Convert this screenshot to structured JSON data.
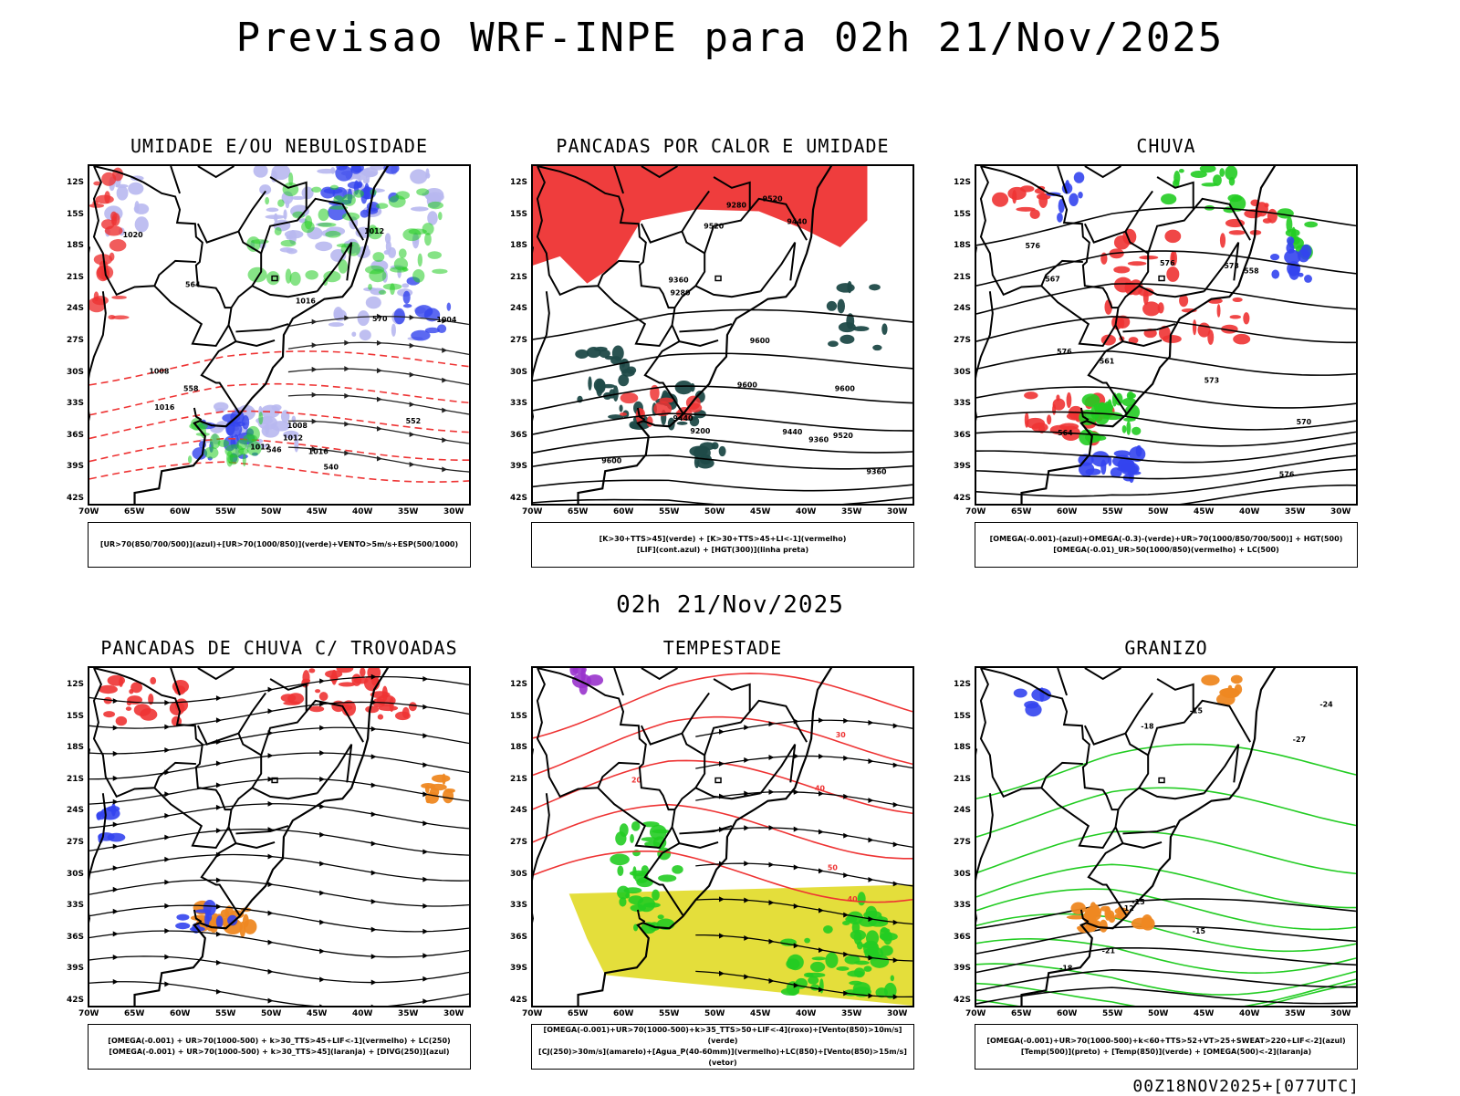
{
  "title": "Previsao WRF-INPE  para 02h 21/Nov/2025",
  "subtitle": "02h 21/Nov/2025",
  "footer": "00Z18NOV2025+[077UTC]",
  "colors": {
    "green": "#22cc22",
    "red": "#ee3333",
    "blue": "#3344ee",
    "lavender": "#b8b8f0",
    "yellow": "#e3dc30",
    "dark_teal": "#1f4a48",
    "orange": "#ee8822",
    "purple": "#9933cc"
  },
  "axes": {
    "y_ticks": [
      "12S",
      "15S",
      "18S",
      "21S",
      "24S",
      "27S",
      "30S",
      "33S",
      "36S",
      "39S",
      "42S"
    ],
    "x_ticks": [
      "70W",
      "65W",
      "60W",
      "55W",
      "50W",
      "45W",
      "40W",
      "35W",
      "30W"
    ]
  },
  "panels": [
    {
      "id": "umidade",
      "title": "UMIDADE E/OU NEBULOSIDADE",
      "legend": [
        "[UR>70(850/700/500)](azul)+[UR>70(1000/850)](verde)+VENTO>5m/s+ESP(500/1000)"
      ],
      "contour_labels": [
        "1012",
        "1008",
        "1016",
        "1020",
        "1004",
        "1016",
        "1012",
        "1008",
        "570",
        "564",
        "558",
        "552",
        "546",
        "540",
        "1012",
        "1016"
      ]
    },
    {
      "id": "pancadas-calor",
      "title": "PANCADAS POR CALOR E UMIDADE",
      "legend": [
        "[K>30+TTS>45](verde) + [K>30+TTS>45+LI<-1](vermelho)",
        "[LIF](cont.azul) + [HGT(300)](linha preta)"
      ],
      "contour_labels": [
        "9600",
        "9600",
        "9600",
        "9600",
        "9520",
        "9520",
        "9520",
        "9440",
        "9360",
        "9440",
        "9360",
        "9280",
        "9200",
        "9280",
        "9440",
        "9360"
      ]
    },
    {
      "id": "chuva",
      "title": "CHUVA",
      "legend": [
        "[OMEGA(-0.001)-(azul)+OMEGA(-0.3)-(verde)+UR>70(1000/850/700/500)] + HGT(500)",
        "[OMEGA(-0.01)_UR>50(1000/850)(vermelho) + LC(500)"
      ],
      "contour_labels": [
        "576",
        "576",
        "573",
        "576",
        "570",
        "567",
        "564",
        "561",
        "558",
        "576",
        "573"
      ]
    },
    {
      "id": "trovoadas",
      "title": "PANCADAS DE CHUVA C/ TROVOADAS",
      "legend": [
        "[OMEGA(-0.001) + UR>70(1000-500) + k>30_TTS>45+LIF<-1](vermelho) + LC(250)",
        "[OMEGA(-0.001) + UR>70(1000-500) + k>30_TTS>45](laranja) + [DIVG(250)](azul)"
      ],
      "contour_labels": []
    },
    {
      "id": "tempestade",
      "title": "TEMPESTADE",
      "legend": [
        "[OMEGA(-0.001)+UR>70(1000-500)+k>35_TTS>50+LIF<-4](roxo)+[Vento(850)>10m/s](verde)",
        "[CJ(250)>30m/s](amarelo)+[Agua_P(40-60mm)](vermelho)+LC(850)+[Vento(850)>15m/s](vetor)"
      ],
      "contour_labels": [
        "40",
        "30",
        "20",
        "50",
        "40"
      ]
    },
    {
      "id": "granizo",
      "title": "GRANIZO",
      "legend": [
        "[OMEGA(-0.001)+UR>70(1000-500)+k<60+TTS>52+VT>25+SWEAT>220+LIF<-2](azul)",
        "[Temp(500)](preto) + [Temp(850)](verde) + [OMEGA(500)<-2](laranja)"
      ],
      "contour_labels": [
        "-12",
        "-15",
        "-15",
        "-18",
        "-18",
        "-21",
        "-24",
        "-27",
        "-15"
      ]
    }
  ]
}
